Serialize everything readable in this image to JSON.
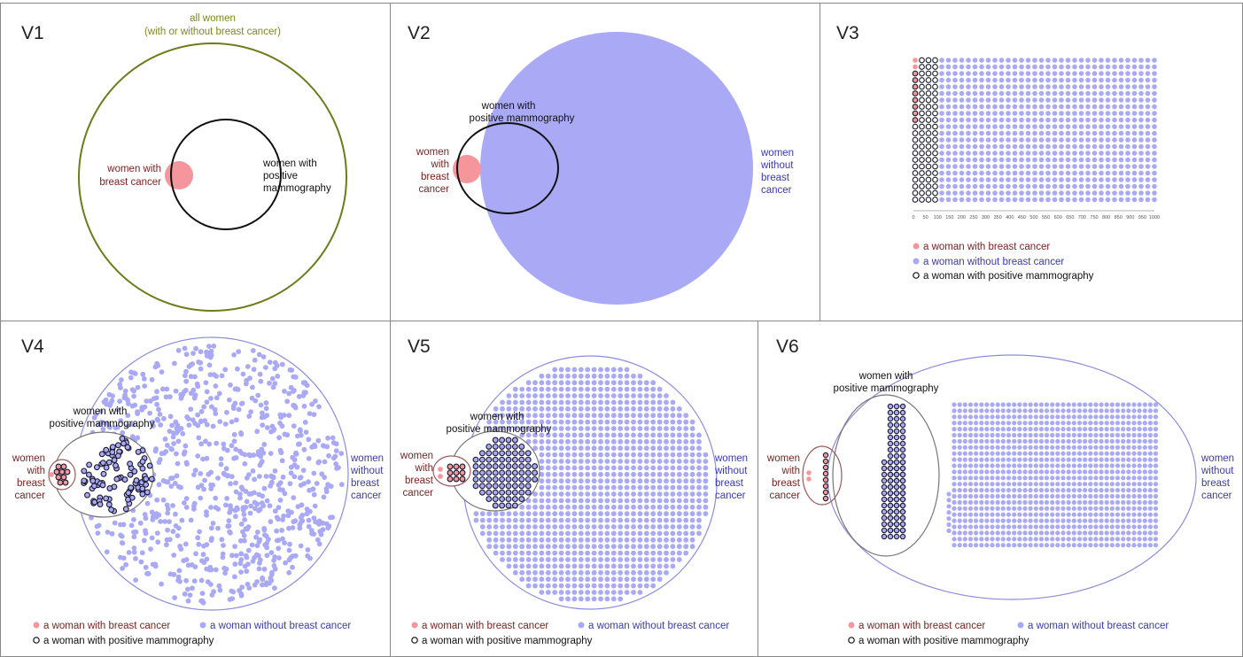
{
  "colors": {
    "cancer": "#f4969b",
    "cancer_text": "#7a1f1f",
    "no_cancer": "#a9a9f5",
    "no_cancer_text": "#3a3ab0",
    "olive": "#6f7a1a",
    "olive_text": "#7d8a17",
    "outline": "#1a1a2e",
    "ellipse_red": "#9a5a5a",
    "ellipse_gray": "#777777",
    "ellipse_blue": "#8c8ce0",
    "border": "#888888"
  },
  "panels": {
    "v1": {
      "label": "V1",
      "all_women": [
        "all women",
        "(with or without breast cancer)"
      ],
      "cancer_label": [
        "women with",
        "breast cancer"
      ],
      "positive_label": [
        "women with",
        "positive",
        "mammography"
      ]
    },
    "v2": {
      "label": "V2",
      "positive_label": [
        "women with",
        "positive mammography"
      ],
      "cancer_label": [
        "women",
        "with",
        "breast",
        "cancer"
      ],
      "no_cancer_label": [
        "women",
        "without",
        "breast",
        "cancer"
      ]
    },
    "v3": {
      "label": "V3",
      "axis_ticks": [
        "0",
        "50",
        "100",
        "150",
        "200",
        "250",
        "300",
        "350",
        "400",
        "450",
        "500",
        "550",
        "600",
        "650",
        "700",
        "750",
        "800",
        "850",
        "900",
        "950",
        "1000"
      ]
    },
    "v4": {
      "label": "V4",
      "positive_label": [
        "women with",
        "positive mammography"
      ],
      "cancer_label": [
        "women",
        "with",
        "breast",
        "cancer"
      ],
      "no_cancer_label": [
        "women",
        "without",
        "breast",
        "cancer"
      ]
    },
    "v5": {
      "label": "V5",
      "positive_label": [
        "women with",
        "positive mammography"
      ],
      "cancer_label": [
        "women",
        "with",
        "breast",
        "cancer"
      ],
      "no_cancer_label": [
        "women",
        "without",
        "breast",
        "cancer"
      ]
    },
    "v6": {
      "label": "V6",
      "positive_label": [
        "women with",
        "positive mammography"
      ],
      "cancer_label": [
        "women",
        "with",
        "breast",
        "cancer"
      ],
      "no_cancer_label": [
        "women",
        "without",
        "breast",
        "cancer"
      ]
    }
  },
  "legend": {
    "cancer": "a woman with breast cancer",
    "no_cancer": "a woman without breast cancer",
    "positive": "a woman with positive mammography"
  }
}
